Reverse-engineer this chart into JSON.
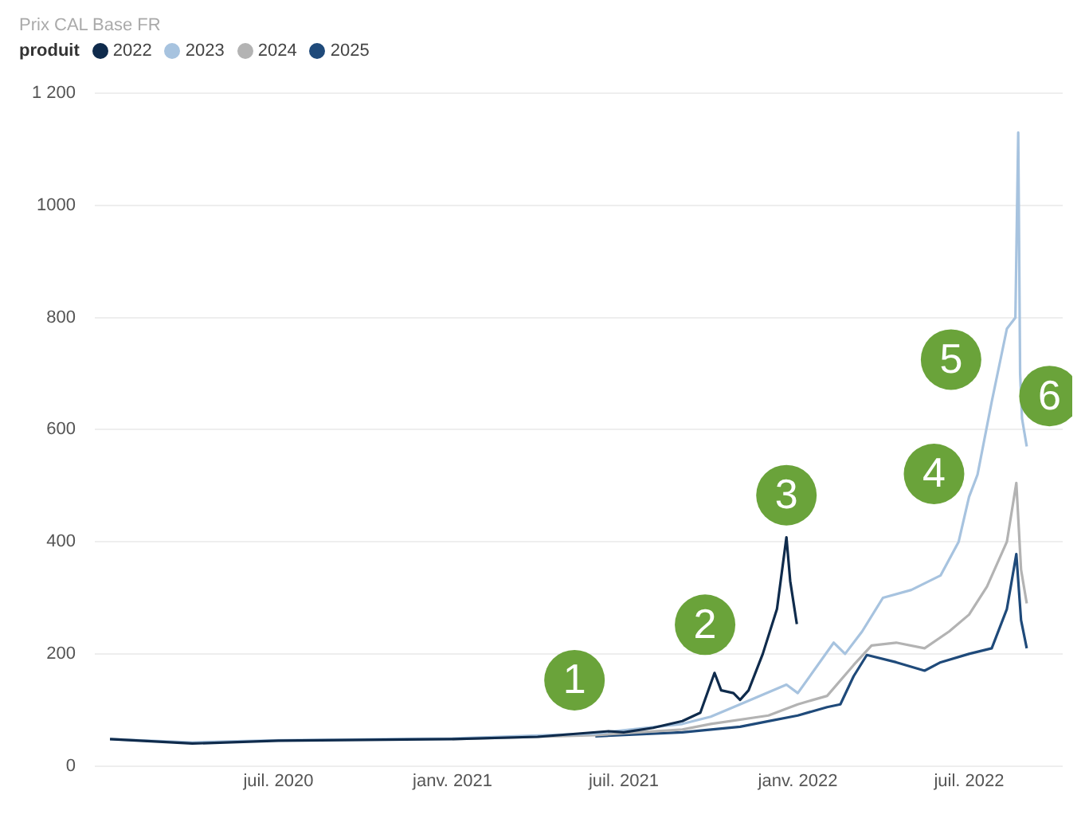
{
  "chart_data": {
    "type": "line",
    "title": "Prix CAL Base FR",
    "legend_title": "produit",
    "legend": "top left",
    "grid": "y",
    "marker": "none",
    "line_style": "solid",
    "xlim": [
      "2019-12-20",
      "2022-10-08"
    ],
    "xticks": [
      {
        "value": "2020-07-01",
        "label": "juil. 2020"
      },
      {
        "value": "2021-01-01",
        "label": "janv. 2021"
      },
      {
        "value": "2021-07-01",
        "label": "juil. 2021"
      },
      {
        "value": "2022-01-01",
        "label": "janv. 2022"
      },
      {
        "value": "2022-07-01",
        "label": "juil. 2022"
      }
    ],
    "ylim": [
      0,
      1200
    ],
    "yticks": [
      0,
      200,
      400,
      600,
      800,
      1000,
      {
        "value": 1200,
        "label": "1 200"
      }
    ],
    "series": [
      {
        "name": "2022",
        "color": "#0f2b4c",
        "x": [
          "2020-01-05",
          "2020-04-01",
          "2020-07-01",
          "2021-01-01",
          "2021-04-01",
          "2021-06-15",
          "2021-07-01",
          "2021-08-01",
          "2021-09-01",
          "2021-09-20",
          "2021-10-05",
          "2021-10-12",
          "2021-10-25",
          "2021-11-01",
          "2021-11-10",
          "2021-11-25",
          "2021-12-10",
          "2021-12-20",
          "2021-12-24",
          "2021-12-31"
        ],
        "values": [
          48,
          40,
          45,
          48,
          52,
          62,
          60,
          68,
          80,
          95,
          166,
          135,
          130,
          118,
          135,
          200,
          280,
          408,
          330,
          253
        ]
      },
      {
        "name": "2023",
        "color": "#a7c3df",
        "x": [
          "2020-01-05",
          "2020-04-01",
          "2020-07-01",
          "2021-01-01",
          "2021-06-01",
          "2021-09-01",
          "2021-10-01",
          "2021-11-01",
          "2021-12-20",
          "2022-01-01",
          "2022-02-08",
          "2022-02-20",
          "2022-03-10",
          "2022-04-01",
          "2022-05-01",
          "2022-06-01",
          "2022-06-20",
          "2022-07-01",
          "2022-07-10",
          "2022-07-25",
          "2022-08-10",
          "2022-08-19",
          "2022-08-22",
          "2022-08-24",
          "2022-08-26",
          "2022-08-31"
        ],
        "values": [
          48,
          42,
          46,
          49,
          58,
          75,
          88,
          110,
          145,
          130,
          220,
          200,
          240,
          300,
          314,
          340,
          400,
          480,
          520,
          650,
          780,
          800,
          1130,
          700,
          620,
          570
        ]
      },
      {
        "name": "2024",
        "color": "#b3b3b3",
        "x": [
          "2021-01-01",
          "2021-06-01",
          "2021-09-01",
          "2021-10-01",
          "2021-12-01",
          "2022-01-01",
          "2022-02-01",
          "2022-03-01",
          "2022-03-20",
          "2022-04-15",
          "2022-05-15",
          "2022-06-10",
          "2022-07-01",
          "2022-07-20",
          "2022-08-10",
          "2022-08-20",
          "2022-08-25",
          "2022-08-31"
        ],
        "values": [
          48,
          55,
          65,
          75,
          90,
          110,
          125,
          180,
          215,
          220,
          210,
          240,
          270,
          320,
          400,
          505,
          350,
          290
        ]
      },
      {
        "name": "2025",
        "color": "#1f4a7a",
        "x": [
          "2021-06-01",
          "2021-09-01",
          "2021-11-01",
          "2021-12-01",
          "2022-01-01",
          "2022-02-01",
          "2022-02-15",
          "2022-03-01",
          "2022-03-15",
          "2022-04-15",
          "2022-05-15",
          "2022-06-01",
          "2022-07-01",
          "2022-07-25",
          "2022-08-10",
          "2022-08-20",
          "2022-08-25",
          "2022-08-31"
        ],
        "values": [
          53,
          60,
          70,
          80,
          90,
          105,
          110,
          160,
          198,
          185,
          170,
          185,
          200,
          210,
          280,
          378,
          260,
          210
        ]
      }
    ],
    "annotations": [
      {
        "text": "1",
        "x": "2021-05-10",
        "y": 153
      },
      {
        "text": "2",
        "x": "2021-09-25",
        "y": 252
      },
      {
        "text": "3",
        "x": "2021-12-20",
        "y": 483
      },
      {
        "text": "4",
        "x": "2022-05-25",
        "y": 521
      },
      {
        "text": "5",
        "x": "2022-06-12",
        "y": 725
      },
      {
        "text": "6",
        "x": "2022-09-24",
        "y": 660
      }
    ]
  }
}
